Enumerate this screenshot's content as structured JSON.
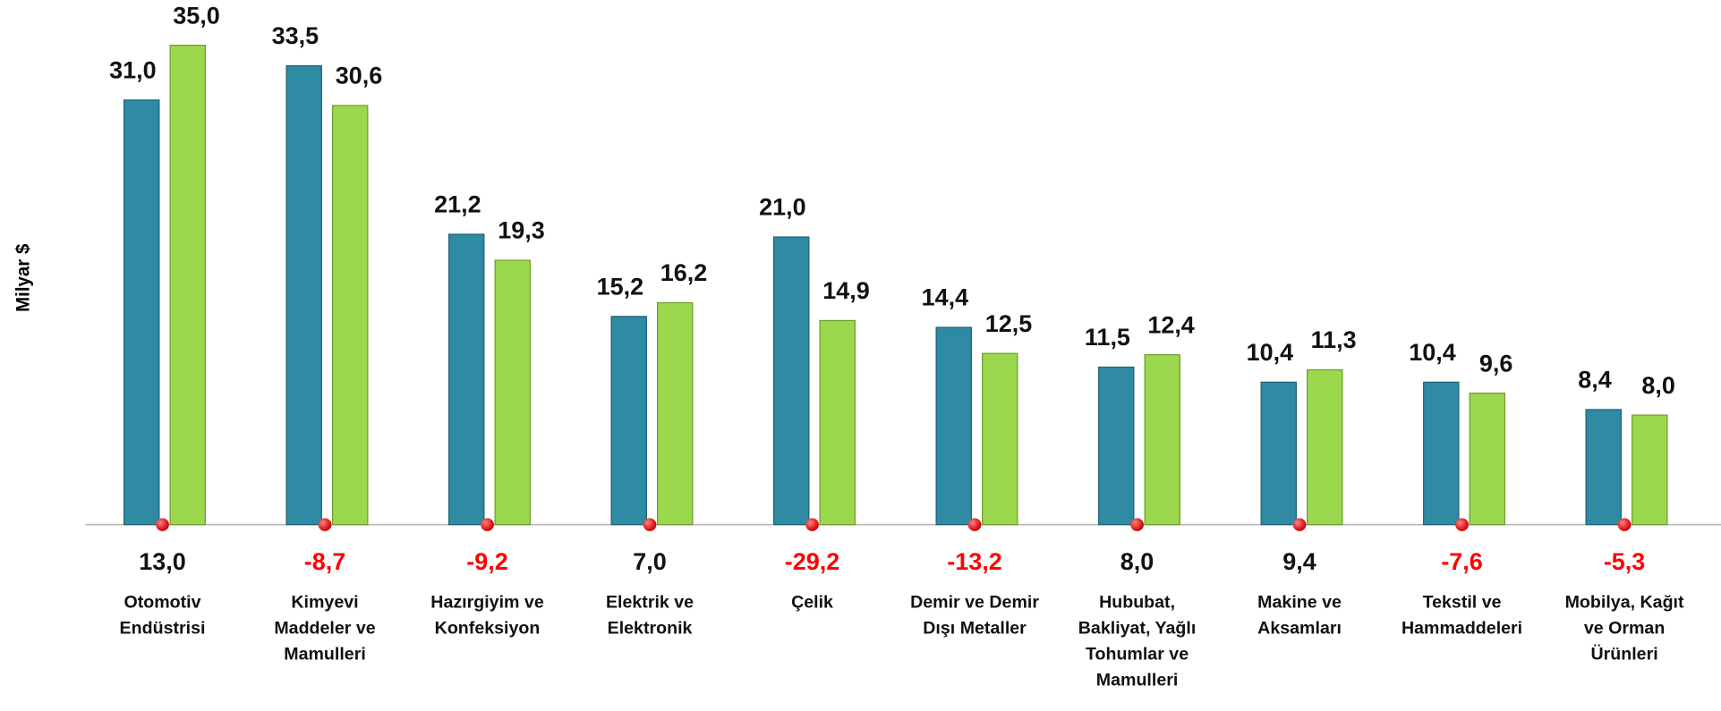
{
  "chart_data": {
    "type": "bar",
    "y_label": "Milyar $",
    "categories": [
      [
        "Otomotiv",
        "Endüstrisi"
      ],
      [
        "Kimyevi",
        "Maddeler ve",
        "Mamulleri"
      ],
      [
        "Hazırgiyim ve",
        "Konfeksiyon"
      ],
      [
        "Elektrik ve",
        "Elektronik"
      ],
      [
        "Çelik"
      ],
      [
        "Demir ve Demir",
        "Dışı Metaller"
      ],
      [
        "Hububat,",
        "Bakliyat, Yağlı",
        "Tohumlar ve",
        "Mamulleri"
      ],
      [
        "Makine ve",
        "Aksamları"
      ],
      [
        "Tekstil ve",
        "Hammaddeleri"
      ],
      [
        "Mobilya, Kağıt",
        "ve Orman",
        "Ürünleri"
      ]
    ],
    "series": [
      {
        "color": "#2f8aa3",
        "values": [
          31.0,
          33.5,
          21.2,
          15.2,
          21.0,
          14.4,
          11.5,
          10.4,
          10.4,
          8.4
        ],
        "value_labels": [
          "31,0",
          "33,5",
          "21,2",
          "15,2",
          "21,0",
          "14,4",
          "11,5",
          "10,4",
          "10,4",
          "8,4"
        ]
      },
      {
        "color": "#9bd84e",
        "values": [
          35.0,
          30.6,
          19.3,
          16.2,
          14.9,
          12.5,
          12.4,
          11.3,
          9.6,
          8.0
        ],
        "value_labels": [
          "35,0",
          "30,6",
          "19,3",
          "16,2",
          "14,9",
          "12,5",
          "12,4",
          "11,3",
          "9,6",
          "8,0"
        ]
      }
    ],
    "change_values": [
      13.0,
      -8.7,
      -9.2,
      7.0,
      -29.2,
      -13.2,
      8.0,
      9.4,
      -7.6,
      -5.3
    ],
    "change_labels": [
      "13,0",
      "-8,7",
      "-9,2",
      "7,0",
      "-29,2",
      "-13,2",
      "8,0",
      "9,4",
      "-7,6",
      "-5,3"
    ],
    "negative_color": "#ff0000",
    "positive_color": "#111111",
    "ylim": [
      0,
      35
    ]
  }
}
